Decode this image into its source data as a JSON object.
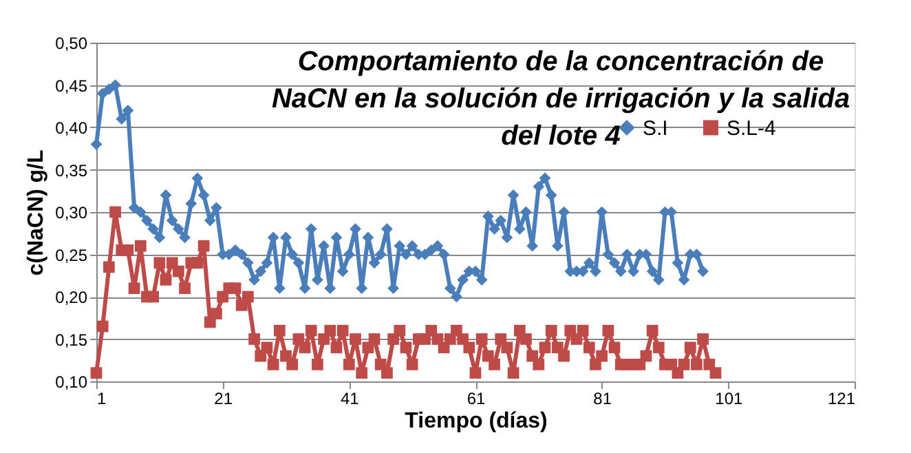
{
  "chart_data": {
    "type": "line",
    "title": [
      "Comportamiento de la concentración de",
      "NaCN en la solución de irrigación y la salida",
      "del lote 4"
    ],
    "xlabel": "Tiempo (días)",
    "ylabel": "c(NaCN) g/L",
    "categories": [
      "1",
      null,
      null,
      null,
      null,
      null,
      null,
      null,
      null,
      null,
      null,
      null,
      null,
      null,
      null,
      null,
      null,
      null,
      null,
      null,
      "21",
      null,
      null,
      null,
      null,
      null,
      null,
      null,
      null,
      null,
      null,
      null,
      null,
      null,
      null,
      null,
      null,
      null,
      null,
      null,
      "41",
      null,
      null,
      null,
      null,
      null,
      null,
      null,
      null,
      null,
      null,
      null,
      null,
      null,
      null,
      null,
      null,
      null,
      null,
      null,
      "61",
      null,
      null,
      null,
      null,
      null,
      null,
      null,
      null,
      null,
      null,
      null,
      null,
      null,
      null,
      null,
      null,
      null,
      null,
      null,
      "81",
      null,
      null,
      null,
      null,
      null,
      null,
      null,
      null,
      null,
      null,
      null,
      null,
      null,
      null,
      null,
      null,
      null,
      null,
      null,
      "101",
      null,
      null,
      null,
      null,
      null,
      null,
      null,
      null,
      null,
      null,
      null,
      null,
      null,
      null,
      null,
      null,
      null,
      null,
      null,
      "121"
    ],
    "ylim": [
      0.1,
      0.5
    ],
    "yticks": [
      {
        "value": 0.1,
        "label": "0,10"
      },
      {
        "value": 0.15,
        "label": "0,15"
      },
      {
        "value": 0.2,
        "label": "0,20"
      },
      {
        "value": 0.25,
        "label": "0,25"
      },
      {
        "value": 0.3,
        "label": "0,30"
      },
      {
        "value": 0.35,
        "label": "0,35"
      },
      {
        "value": 0.4,
        "label": "0,40"
      },
      {
        "value": 0.45,
        "label": "0,45"
      },
      {
        "value": 0.5,
        "label": "0,50"
      }
    ],
    "grid": "y",
    "legend": "top right",
    "series": [
      {
        "name": "S.I",
        "color": "#4a7ebb",
        "marker": "diamond",
        "values": [
          0.38,
          0.44,
          0.445,
          0.45,
          0.41,
          0.42,
          0.305,
          0.3,
          0.29,
          0.28,
          0.27,
          0.32,
          0.29,
          0.28,
          0.27,
          0.31,
          0.34,
          0.32,
          0.29,
          0.305,
          0.25,
          0.25,
          0.255,
          0.25,
          0.24,
          0.22,
          0.23,
          0.24,
          0.27,
          0.21,
          0.27,
          0.25,
          0.24,
          0.21,
          0.28,
          0.22,
          0.26,
          0.21,
          0.27,
          0.23,
          0.25,
          0.28,
          0.21,
          0.27,
          0.24,
          0.25,
          0.28,
          0.21,
          0.26,
          0.25,
          0.26,
          0.25,
          0.25,
          0.255,
          0.26,
          0.25,
          0.21,
          0.2,
          0.22,
          0.23,
          0.23,
          0.22,
          0.295,
          0.28,
          0.29,
          0.27,
          0.32,
          0.28,
          0.3,
          0.26,
          0.33,
          0.34,
          0.32,
          0.26,
          0.3,
          0.23,
          0.23,
          0.23,
          0.24,
          0.23,
          0.3,
          0.25,
          0.24,
          0.23,
          0.25,
          0.23,
          0.25,
          0.25,
          0.23,
          0.22,
          0.3,
          0.3,
          0.24,
          0.22,
          0.25,
          0.25,
          0.23,
          null,
          null,
          null,
          null,
          null,
          null,
          null,
          null,
          null,
          null,
          null,
          null,
          null,
          null,
          null,
          null,
          null,
          null,
          null,
          null,
          null,
          null,
          null,
          null
        ]
      },
      {
        "name": "S.L-4",
        "color": "#be4b48",
        "marker": "square",
        "values": [
          0.11,
          0.165,
          0.235,
          0.3,
          0.255,
          0.255,
          0.21,
          0.26,
          0.2,
          0.2,
          0.24,
          0.22,
          0.24,
          0.23,
          0.21,
          0.24,
          0.24,
          0.26,
          0.17,
          0.18,
          0.2,
          0.21,
          0.21,
          0.19,
          0.2,
          0.15,
          0.13,
          0.14,
          0.12,
          0.16,
          0.13,
          0.12,
          0.15,
          0.14,
          0.16,
          0.12,
          0.15,
          0.16,
          0.14,
          0.16,
          0.12,
          0.15,
          0.11,
          0.14,
          0.15,
          0.12,
          0.11,
          0.15,
          0.16,
          0.14,
          0.12,
          0.15,
          0.15,
          0.16,
          0.15,
          0.14,
          0.15,
          0.16,
          0.15,
          0.14,
          0.11,
          0.15,
          0.13,
          0.12,
          0.15,
          0.14,
          0.11,
          0.16,
          0.15,
          0.13,
          0.12,
          0.14,
          0.16,
          0.14,
          0.13,
          0.16,
          0.15,
          0.16,
          0.14,
          0.12,
          0.13,
          0.16,
          0.14,
          0.12,
          0.12,
          0.12,
          0.12,
          0.13,
          0.16,
          0.14,
          0.12,
          0.12,
          0.11,
          0.12,
          0.14,
          0.12,
          0.15,
          0.12,
          0.11,
          null,
          null,
          null,
          null,
          null,
          null,
          null,
          null,
          null,
          null,
          null,
          null,
          null,
          null,
          null,
          null,
          null,
          null,
          null,
          null,
          null,
          null
        ]
      }
    ]
  }
}
